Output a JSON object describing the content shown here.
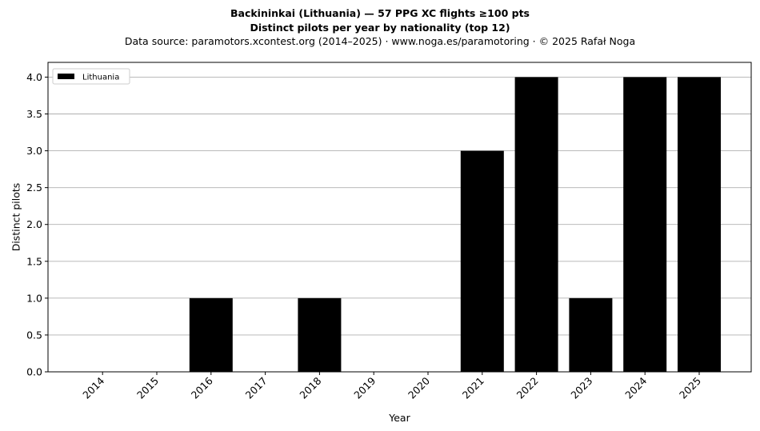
{
  "chart_data": {
    "type": "bar",
    "title": "Backininkai (Lithuania)  —  57 PPG XC flights ≥100 pts",
    "subtitle": "Distinct pilots per year by nationality (top 12)",
    "source": "Data source: paramotors.xcontest.org (2014–2025)  ·  www.noga.es/paramotoring  ·  © 2025 Rafał Noga",
    "xlabel": "Year",
    "ylabel": "Distinct pilots",
    "categories": [
      "2014",
      "2015",
      "2016",
      "2017",
      "2018",
      "2019",
      "2020",
      "2021",
      "2022",
      "2023",
      "2024",
      "2025"
    ],
    "series": [
      {
        "name": "Lithuania",
        "color": "#000000",
        "values": [
          0,
          0,
          1,
          0,
          1,
          0,
          0,
          3,
          4,
          1,
          4,
          4
        ]
      }
    ],
    "ylim": [
      0,
      4.2
    ],
    "yticks": [
      "0.0",
      "0.5",
      "1.0",
      "1.5",
      "2.0",
      "2.5",
      "3.0",
      "3.5",
      "4.0"
    ],
    "grid": "y",
    "legend_position": "top-left"
  }
}
